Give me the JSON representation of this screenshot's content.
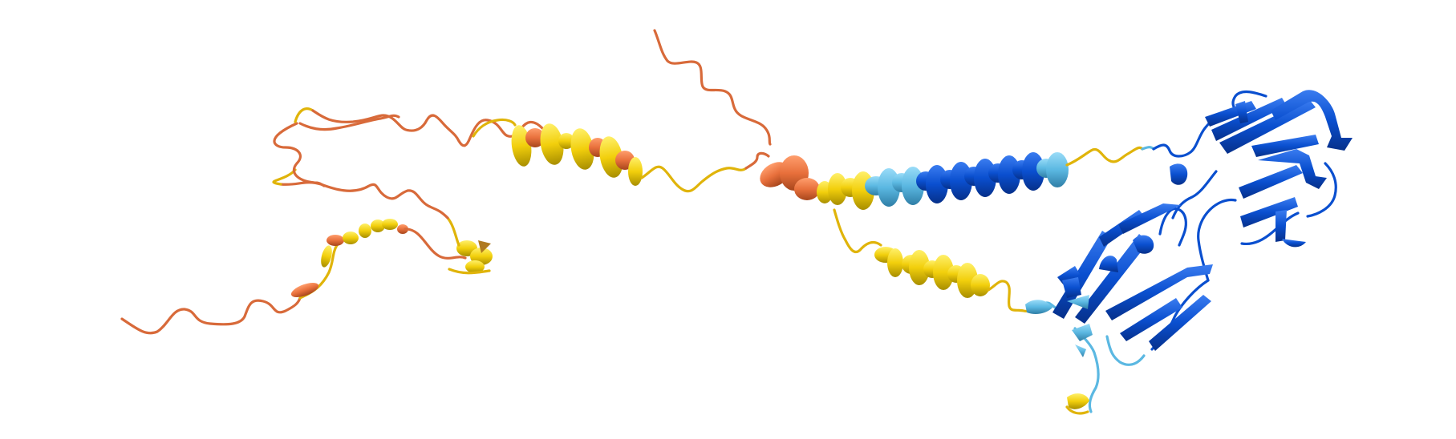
{
  "structure": {
    "kind": "protein-cartoon",
    "confidence_colors": {
      "very_high": "#0053D6",
      "confident": "#65CBF3",
      "low": "#FFDB13",
      "very_low": "#FF7D45"
    },
    "background": "#ffffff"
  }
}
